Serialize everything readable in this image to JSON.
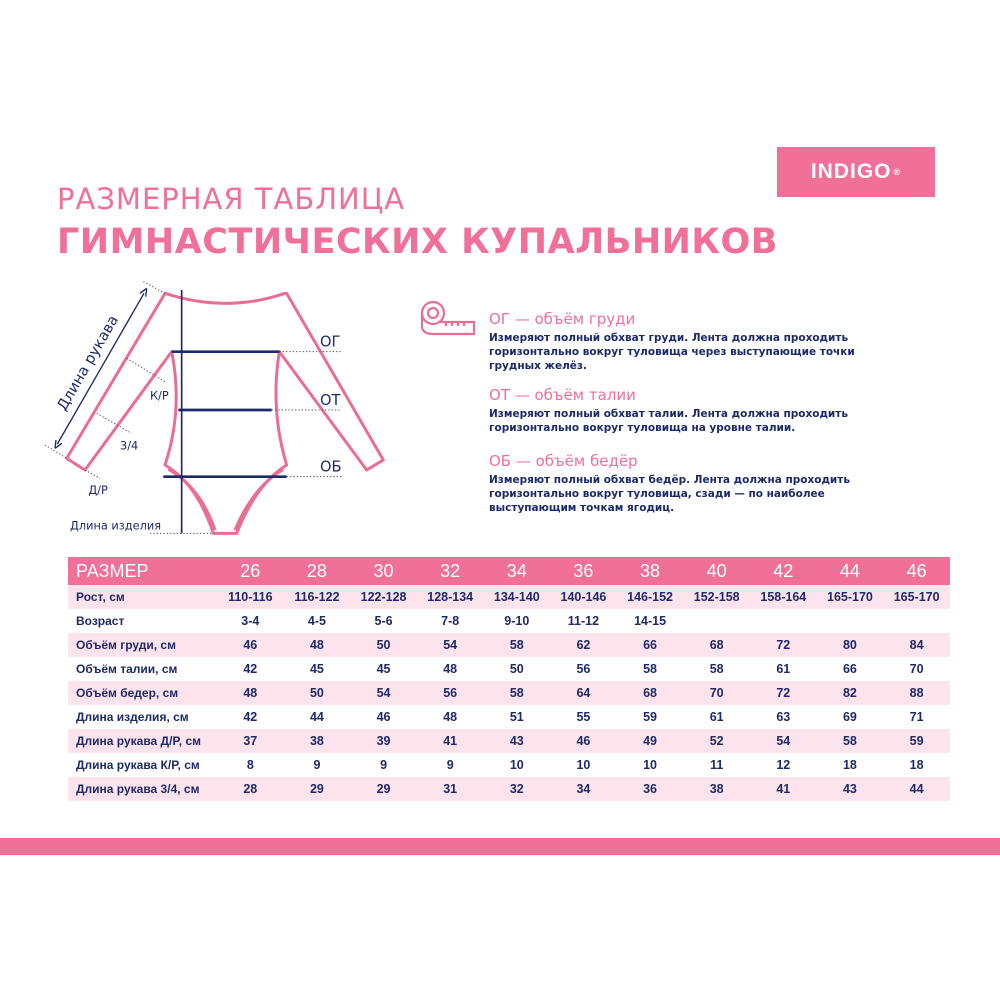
{
  "brand": {
    "name": "INDIGO",
    "mark": "®"
  },
  "title": {
    "line1": "РАЗМЕРНАЯ ТАБЛИЦА",
    "line2": "ГИМНАСТИЧЕСКИХ КУПАЛЬНИКОВ"
  },
  "colors": {
    "accent": "#f07098",
    "text": "#1c2a6b",
    "row_alt": "#fde4ec"
  },
  "diagram": {
    "sleeve_length": "Длина рукава",
    "short_sleeve": "К/Р",
    "three_quarter": "3/4",
    "long_sleeve": "Д/Р",
    "garment_length": "Длина изделия",
    "chest": "ОГ",
    "waist": "ОТ",
    "hips": "ОБ"
  },
  "legend": {
    "icon": "measuring-tape-icon",
    "items": [
      {
        "title": "ОГ — объём груди",
        "text": "Измеряют полный обхват груди. Лента должна проходить горизонтально вокруг туловища через выступающие точки грудных желёз."
      },
      {
        "title": "ОТ — объём талии",
        "text": "Измеряют полный обхват талии. Лента должна проходить горизонтально вокруг туловища на уровне талии."
      },
      {
        "title": "ОБ — объём бедёр",
        "text": "Измеряют полный обхват бедёр. Лента должна проходить горизонтально вокруг туловища, сзади — по наиболее выступающим точкам ягодиц."
      }
    ]
  },
  "table": {
    "header": [
      "РАЗМЕР",
      "26",
      "28",
      "30",
      "32",
      "34",
      "36",
      "38",
      "40",
      "42",
      "44",
      "46"
    ],
    "rows": [
      [
        "Рост, см",
        "110-116",
        "116-122",
        "122-128",
        "128-134",
        "134-140",
        "140-146",
        "146-152",
        "152-158",
        "158-164",
        "165-170",
        "165-170"
      ],
      [
        "Возраст",
        "3-4",
        "4-5",
        "5-6",
        "7-8",
        "9-10",
        "11-12",
        "14-15",
        "",
        "",
        "",
        ""
      ],
      [
        "Объём  груди, см",
        "46",
        "48",
        "50",
        "54",
        "58",
        "62",
        "66",
        "68",
        "72",
        "80",
        "84"
      ],
      [
        "Объём  талии, см",
        "42",
        "45",
        "45",
        "48",
        "50",
        "56",
        "58",
        "58",
        "61",
        "66",
        "70"
      ],
      [
        "Объём  бедер, см",
        "48",
        "50",
        "54",
        "56",
        "58",
        "64",
        "68",
        "70",
        "72",
        "82",
        "88"
      ],
      [
        "Длина изделия, см",
        "42",
        "44",
        "46",
        "48",
        "51",
        "55",
        "59",
        "61",
        "63",
        "69",
        "71"
      ],
      [
        "Длина рукава  Д/Р, см",
        "37",
        "38",
        "39",
        "41",
        "43",
        "46",
        "49",
        "52",
        "54",
        "58",
        "59"
      ],
      [
        "Длина рукава  К/Р, см",
        "8",
        "9",
        "9",
        "9",
        "10",
        "10",
        "10",
        "11",
        "12",
        "18",
        "18"
      ],
      [
        "Длина рукава  3/4, см",
        "28",
        "29",
        "29",
        "31",
        "32",
        "34",
        "36",
        "38",
        "41",
        "43",
        "44"
      ]
    ]
  }
}
